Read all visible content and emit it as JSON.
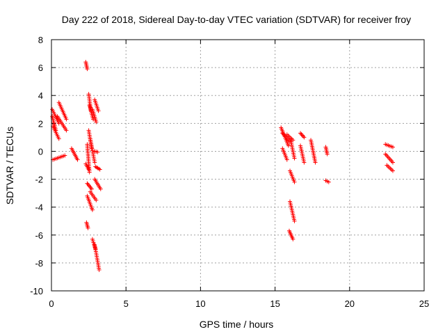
{
  "chart_data": {
    "type": "scatter",
    "title": "Day 222 of 2018, Sidereal Day-to-day VTEC variation (SDTVAR) for receiver froy",
    "xlabel": "GPS time / hours",
    "ylabel": "SDTVAR / TECUs",
    "xlim": [
      0,
      25
    ],
    "ylim": [
      -10,
      8
    ],
    "xticks": [
      0,
      5,
      10,
      15,
      20,
      25
    ],
    "yticks": [
      -10,
      -8,
      -6,
      -4,
      -2,
      0,
      2,
      4,
      6,
      8
    ],
    "grid": true,
    "marker": "plus",
    "color": "#ff0000",
    "series": [
      {
        "name": "SDTVAR",
        "segments": [
          {
            "x": [
              0.05,
              0.5
            ],
            "y": [
              3.0,
              2.0
            ]
          },
          {
            "x": [
              0.1,
              0.5
            ],
            "y": [
              1.8,
              0.9
            ]
          },
          {
            "x": [
              0.05,
              0.3
            ],
            "y": [
              2.5,
              1.5
            ]
          },
          {
            "x": [
              0.1,
              0.9
            ],
            "y": [
              -0.6,
              -0.3
            ]
          },
          {
            "x": [
              0.5,
              1.0
            ],
            "y": [
              3.5,
              2.3
            ]
          },
          {
            "x": [
              0.4,
              1.0
            ],
            "y": [
              2.5,
              1.5
            ]
          },
          {
            "x": [
              1.35,
              1.75
            ],
            "y": [
              0.2,
              -0.6
            ]
          },
          {
            "x": [
              2.3,
              2.4
            ],
            "y": [
              6.4,
              5.9
            ]
          },
          {
            "x": [
              2.5,
              2.65
            ],
            "y": [
              4.1,
              2.9
            ]
          },
          {
            "x": [
              2.55,
              2.8
            ],
            "y": [
              3.3,
              2.3
            ]
          },
          {
            "x": [
              2.9,
              3.15
            ],
            "y": [
              3.7,
              2.9
            ]
          },
          {
            "x": [
              2.75,
              3.0
            ],
            "y": [
              3.0,
              2.1
            ]
          },
          {
            "x": [
              2.5,
              2.7
            ],
            "y": [
              1.5,
              0.2
            ]
          },
          {
            "x": [
              2.4,
              2.55
            ],
            "y": [
              0.5,
              -1.5
            ]
          },
          {
            "x": [
              2.3,
              2.5
            ],
            "y": [
              -0.9,
              -1.3
            ]
          },
          {
            "x": [
              2.6,
              2.9
            ],
            "y": [
              0.9,
              -0.8
            ]
          },
          {
            "x": [
              2.9,
              3.1
            ],
            "y": [
              0.0,
              -0.05
            ]
          },
          {
            "x": [
              2.4,
              2.7
            ],
            "y": [
              -2.3,
              -2.7
            ]
          },
          {
            "x": [
              2.4,
              2.75
            ],
            "y": [
              -3.2,
              -4.2
            ]
          },
          {
            "x": [
              2.6,
              3.0
            ],
            "y": [
              -2.9,
              -3.5
            ]
          },
          {
            "x": [
              2.9,
              3.3
            ],
            "y": [
              -2.0,
              -2.7
            ]
          },
          {
            "x": [
              2.95,
              3.25
            ],
            "y": [
              -1.1,
              -1.3
            ]
          },
          {
            "x": [
              2.35,
              2.45
            ],
            "y": [
              -5.1,
              -5.5
            ]
          },
          {
            "x": [
              2.75,
              2.95
            ],
            "y": [
              -6.3,
              -7.0
            ]
          },
          {
            "x": [
              2.9,
              3.2
            ],
            "y": [
              -6.7,
              -8.5
            ]
          },
          {
            "x": [
              15.4,
              15.9
            ],
            "y": [
              1.7,
              0.4
            ]
          },
          {
            "x": [
              15.5,
              16.0
            ],
            "y": [
              1.3,
              0.7
            ]
          },
          {
            "x": [
              15.5,
              15.8
            ],
            "y": [
              0.2,
              -0.6
            ]
          },
          {
            "x": [
              15.8,
              16.2
            ],
            "y": [
              1.2,
              0.8
            ]
          },
          {
            "x": [
              16.0,
              16.3
            ],
            "y": [
              -1.4,
              -2.2
            ]
          },
          {
            "x": [
              16.0,
              16.3
            ],
            "y": [
              -3.6,
              -5.0
            ]
          },
          {
            "x": [
              15.95,
              16.2
            ],
            "y": [
              -5.7,
              -6.3
            ]
          },
          {
            "x": [
              16.05,
              16.3
            ],
            "y": [
              0.8,
              -0.5
            ]
          },
          {
            "x": [
              16.7,
              16.95
            ],
            "y": [
              1.3,
              1.0
            ]
          },
          {
            "x": [
              16.7,
              16.95
            ],
            "y": [
              0.4,
              -0.8
            ]
          },
          {
            "x": [
              17.4,
              17.7
            ],
            "y": [
              0.8,
              -0.8
            ]
          },
          {
            "x": [
              18.4,
              18.5
            ],
            "y": [
              0.3,
              -0.2
            ]
          },
          {
            "x": [
              18.4,
              18.6
            ],
            "y": [
              -2.1,
              -2.2
            ]
          },
          {
            "x": [
              22.4,
              22.9
            ],
            "y": [
              0.5,
              0.3
            ]
          },
          {
            "x": [
              22.4,
              22.9
            ],
            "y": [
              -0.2,
              -0.8
            ]
          },
          {
            "x": [
              22.5,
              22.9
            ],
            "y": [
              -1.0,
              -1.4
            ]
          }
        ]
      }
    ]
  }
}
